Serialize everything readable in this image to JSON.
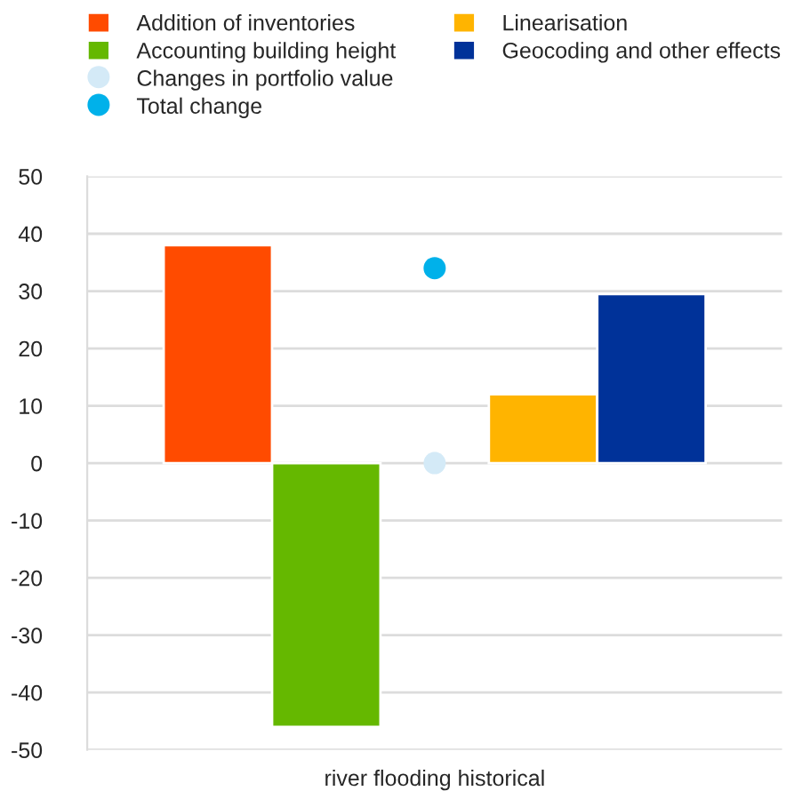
{
  "chart_data": {
    "type": "bar",
    "categories": [
      "river flooding historical"
    ],
    "series": [
      {
        "name": "Addition of inventories",
        "color": "#ff4b00",
        "values": [
          38
        ]
      },
      {
        "name": "Accounting building height",
        "color": "#65b800",
        "values": [
          -46
        ]
      },
      {
        "name": "Changes in portfolio value",
        "color": "#d4eaf7",
        "values": [
          0
        ],
        "type": "scatter"
      },
      {
        "name": "Total change",
        "color": "#00b1ea",
        "values": [
          34
        ],
        "type": "scatter"
      },
      {
        "name": "Linearisation",
        "color": "#ffb400",
        "values": [
          12
        ]
      },
      {
        "name": "Geocoding and other effects",
        "color": "#003299",
        "values": [
          29.5
        ]
      }
    ],
    "ylim": [
      -50,
      50
    ],
    "yticks": [
      -50,
      -40,
      -30,
      -20,
      -10,
      0,
      10,
      20,
      30,
      40,
      50
    ],
    "grid": "y",
    "legend": "top",
    "marker": "circle"
  }
}
